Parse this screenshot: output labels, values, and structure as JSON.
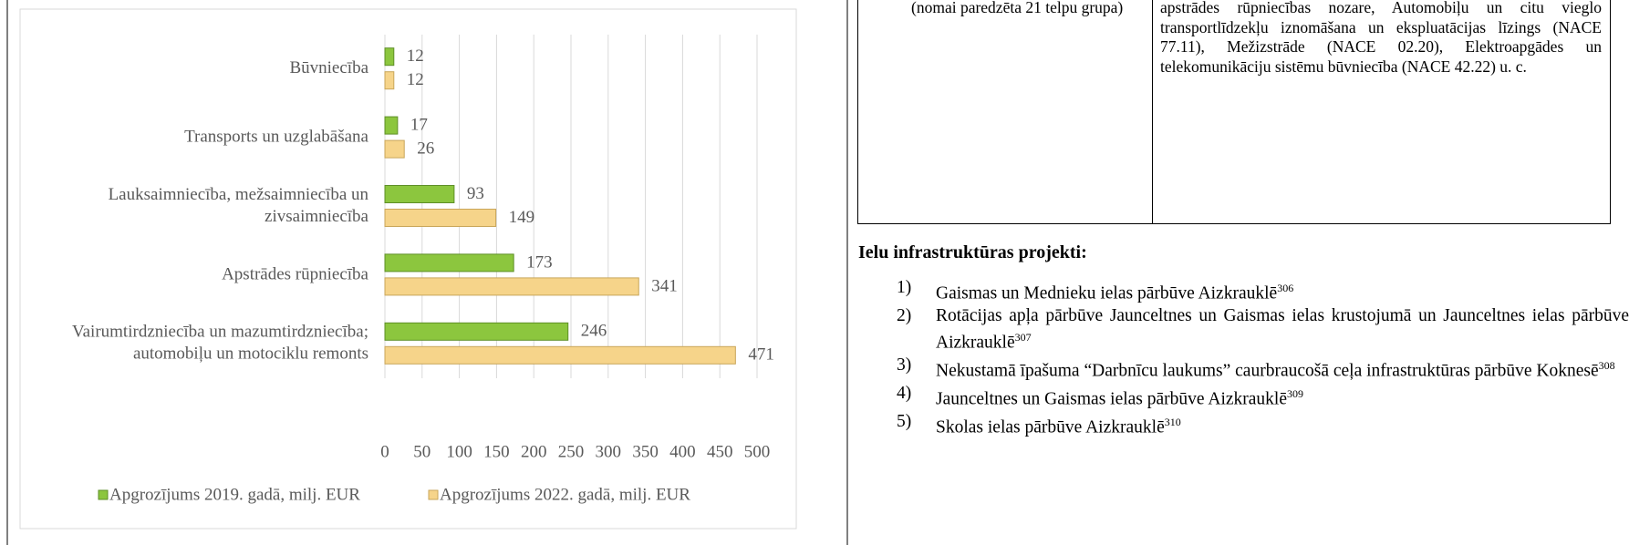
{
  "chart": {
    "type": "bar",
    "orientation": "horizontal",
    "categories": [
      [
        "Būvniecība"
      ],
      [
        "Transports un uzglabāšana"
      ],
      [
        "Lauksaimniecība, mežsaimniecība un",
        "zivsaimniecība"
      ],
      [
        "Apstrādes rūpniecība"
      ],
      [
        "Vairumtirdzniecība un mazumtirdzniecība;",
        "automobiļu un motociklu remonts"
      ]
    ],
    "series": [
      {
        "name": "Apgrozījums 2019. gadā, milj. EUR",
        "color": "#8cc63e",
        "values": [
          12,
          17,
          93,
          173,
          246
        ]
      },
      {
        "name": "Apgrozījums 2022. gadā, milj. EUR",
        "color": "#f6d48a",
        "values": [
          12,
          26,
          149,
          341,
          471
        ]
      }
    ],
    "xlim": [
      0,
      500
    ],
    "xticks": [
      0,
      50,
      100,
      150,
      200,
      250,
      300,
      350,
      400,
      450,
      500
    ],
    "grid": true,
    "legend": "bottom"
  },
  "table": {
    "rows": [
      [
        "(nomai paredzēta 21 telpu grupa)",
        "apstrādes rūpniecības nozare, Automobiļu un citu vieglo transportlīdzekļu iznomāšana un ekspluatācijas līzings (NACE 77.11), Mežizstrāde (NACE 02.20), Elektroapgādes un telekomunikāciju sistēmu būvniecība (NACE 42.22) u. c."
      ]
    ]
  },
  "section": {
    "heading": "Ielu infrastruktūras projekti:",
    "items": [
      {
        "number": "1)",
        "text": "Gaismas un Mednieku ielas pārbūve Aizkrauklē",
        "note": "306"
      },
      {
        "number": "2)",
        "text": "Rotācijas apļa pārbūve Jaunceltnes un Gaismas ielas krustojumā un Jaunceltnes ielas pārbūve Aizkrauklē",
        "note": "307"
      },
      {
        "number": "3)",
        "text": "Nekustamā īpašuma “Darbnīcu laukums” caurbraucošā ceļa infrastruktūras pārbūve Koknesē",
        "note": "308"
      },
      {
        "number": "4)",
        "text": "Jaunceltnes un Gaismas ielas pārbūve Aizkrauklē",
        "note": "309"
      },
      {
        "number": "5)",
        "text": "Skolas ielas pārbūve Aizkrauklē",
        "note": "310"
      }
    ]
  }
}
